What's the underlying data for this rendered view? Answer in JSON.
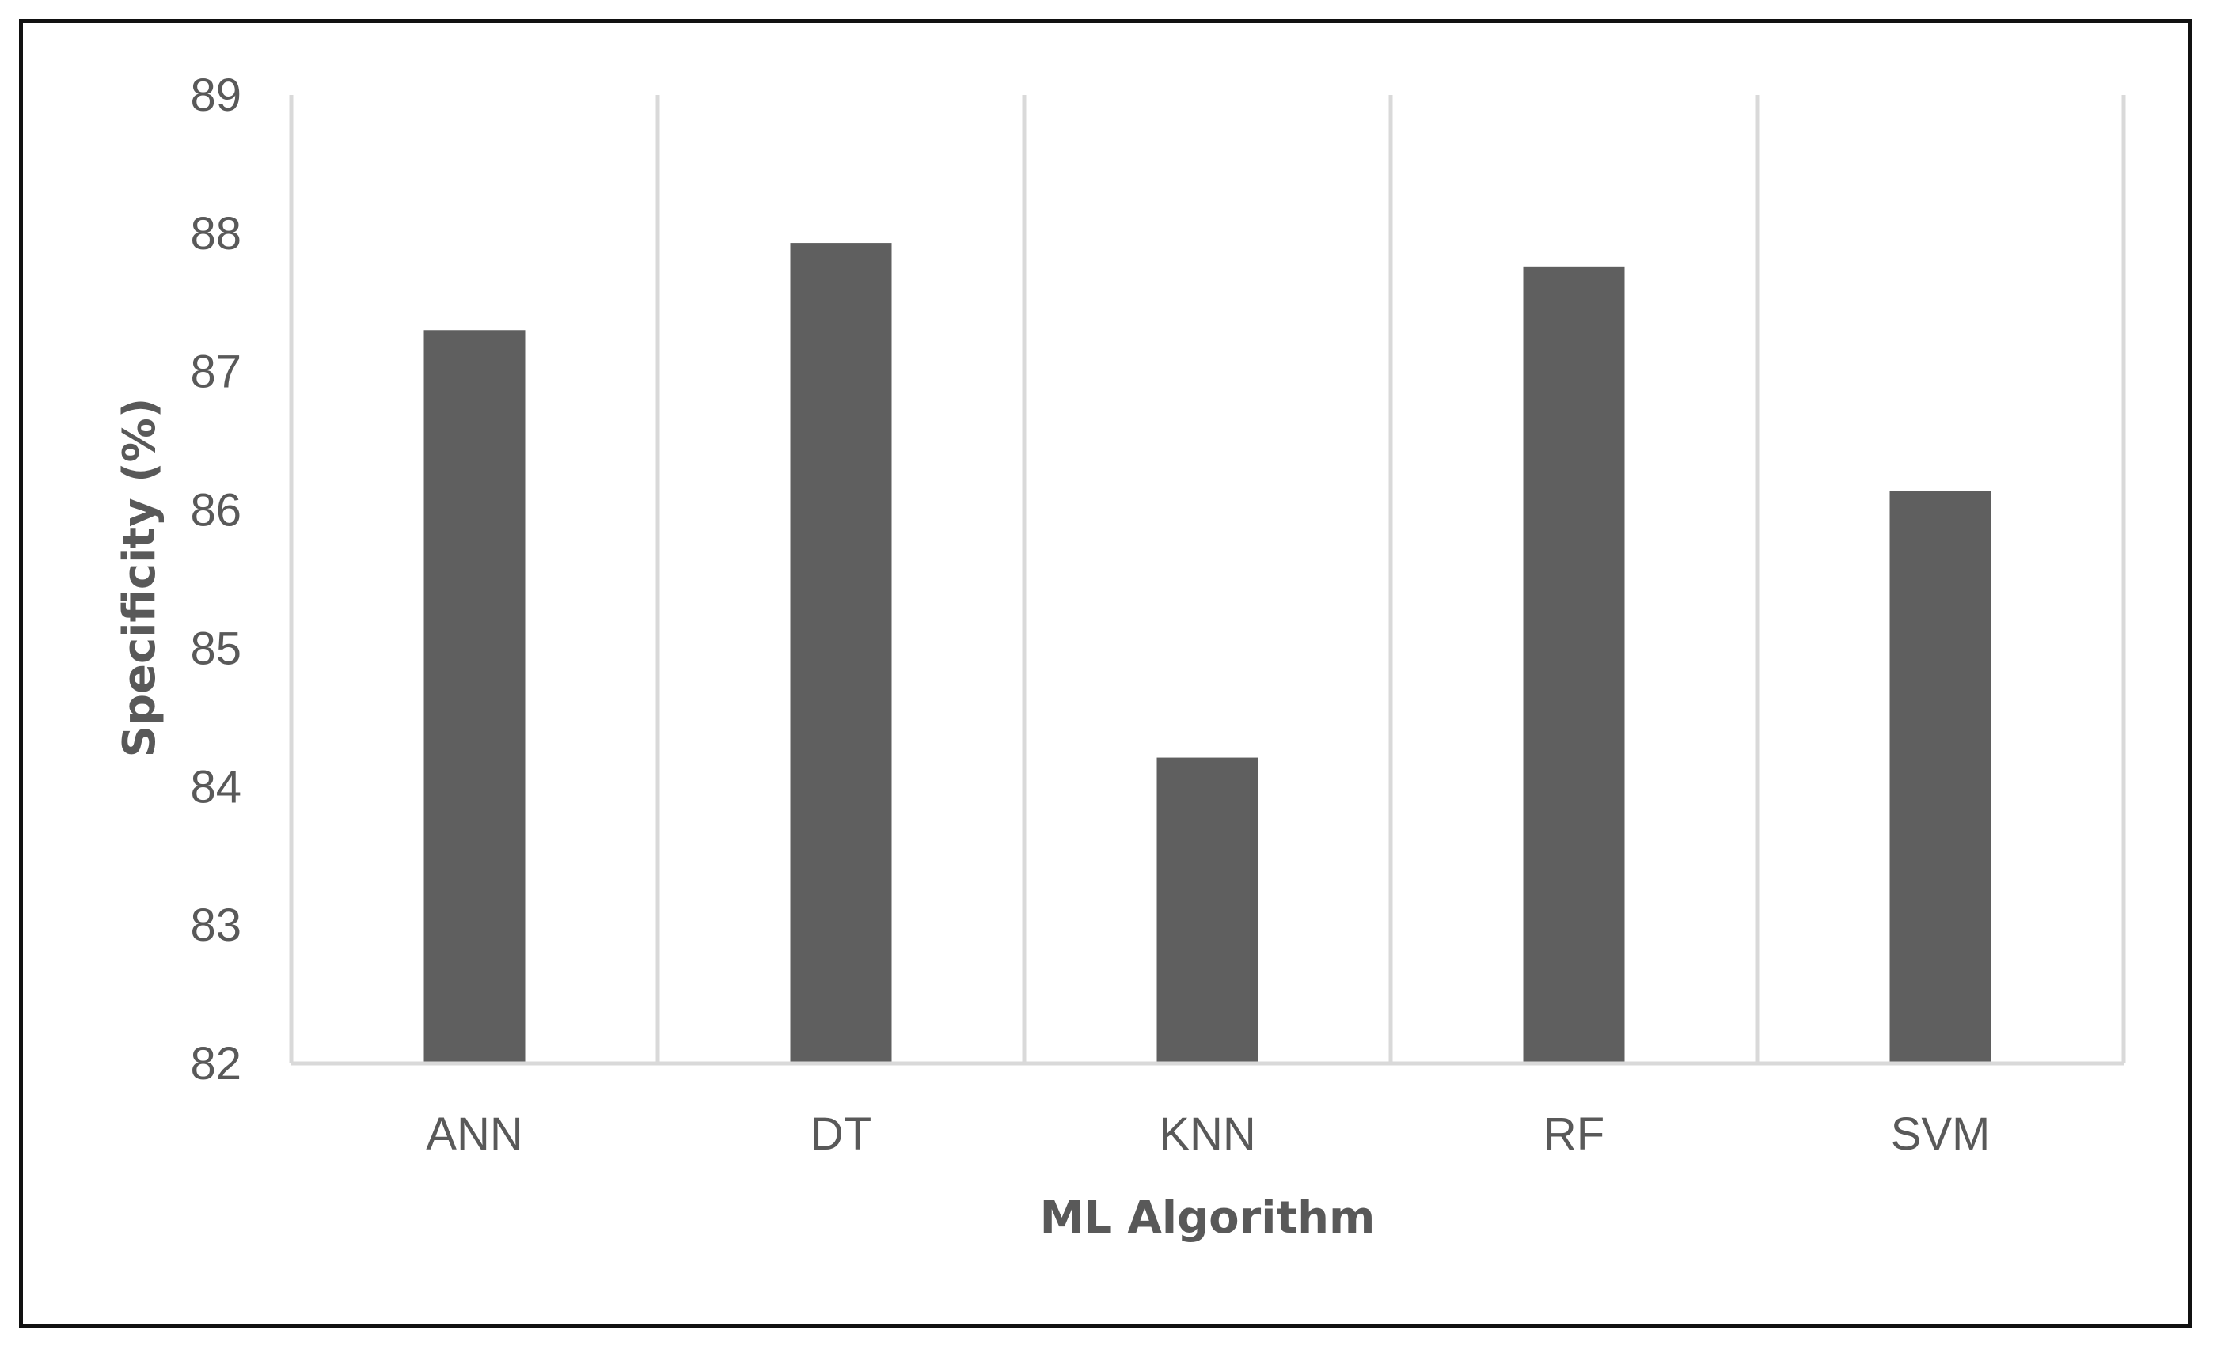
{
  "chart_data": {
    "type": "bar",
    "title": "",
    "xlabel": "ML Algorithm",
    "ylabel": "Specificity (%)",
    "categories": [
      "ANN",
      "DT",
      "KNN",
      "RF",
      "SVM"
    ],
    "values": [
      87.3,
      87.93,
      84.21,
      87.76,
      86.14
    ],
    "ylim": [
      82,
      89
    ],
    "yticks": [
      82,
      83,
      84,
      85,
      86,
      87,
      88,
      89
    ],
    "grid": "vertical category separators",
    "legend": "none",
    "colors": {
      "bar": "#5f5f5f",
      "grid": "#d9d9d9",
      "text": "#595959",
      "frame": "#111111"
    }
  }
}
